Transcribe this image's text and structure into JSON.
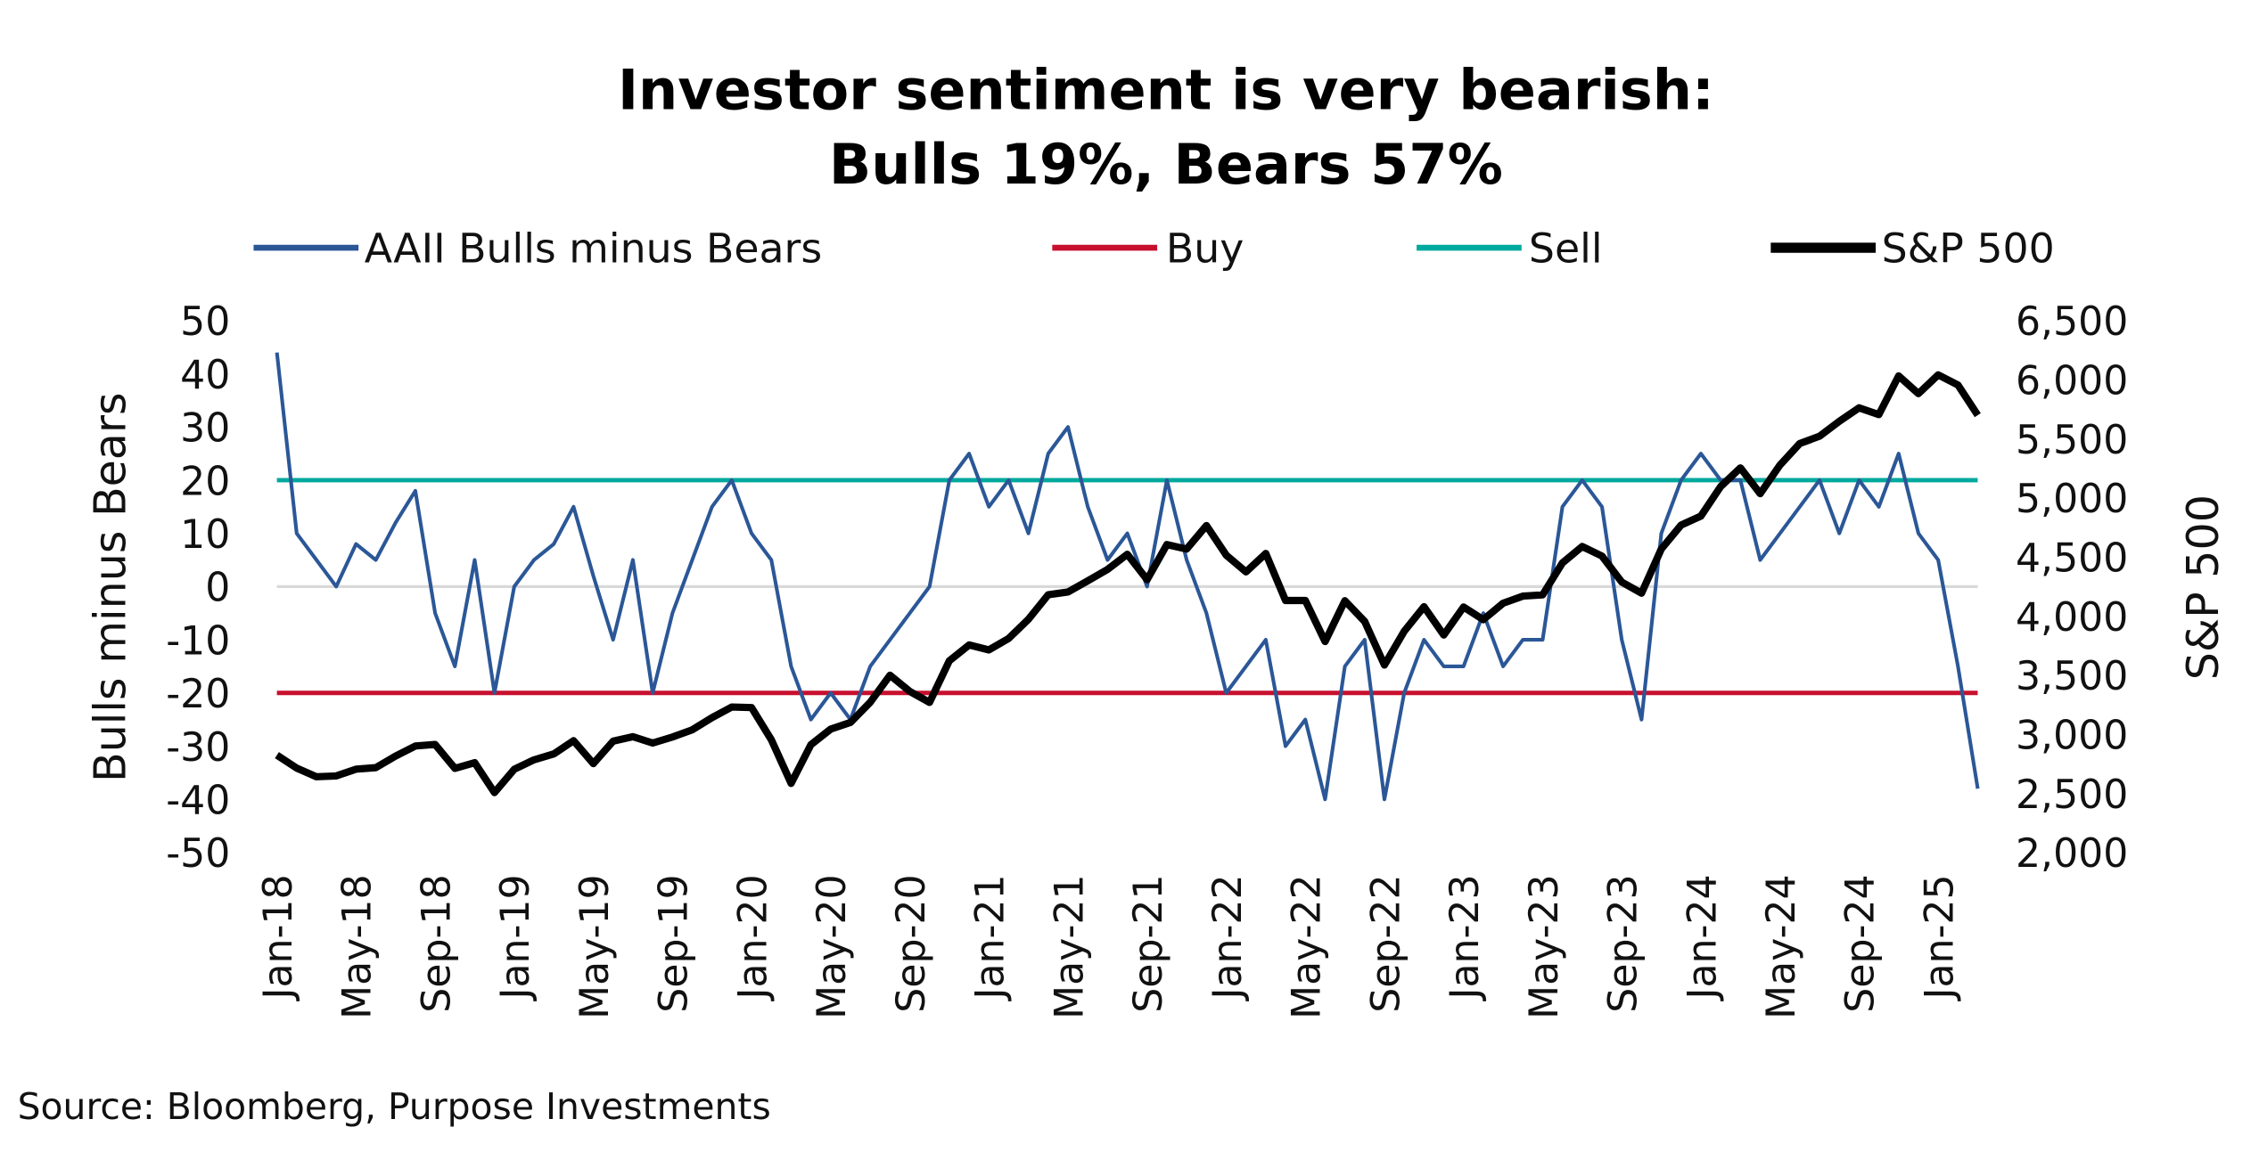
{
  "chart_data": {
    "type": "line",
    "title": "Investor sentiment is very bearish:",
    "subtitle": "Bulls 19%, Bears 57%",
    "ylabel": "Bulls minus Bears",
    "y2label": "S&P 500",
    "ylim": [
      -50,
      50
    ],
    "y2lim": [
      2000,
      6500
    ],
    "yticks": [
      "50",
      "40",
      "30",
      "20",
      "10",
      "0",
      "-10",
      "-20",
      "-30",
      "-40",
      "-50"
    ],
    "y2ticks": [
      "6,500",
      "6,000",
      "5,500",
      "5,000",
      "4,500",
      "4,000",
      "3,500",
      "3,000",
      "2,500",
      "2,000"
    ],
    "xticks": [
      "Jan-18",
      "May-18",
      "Sep-18",
      "Jan-19",
      "May-19",
      "Sep-19",
      "Jan-20",
      "May-20",
      "Sep-20",
      "Jan-21",
      "May-21",
      "Sep-21",
      "Jan-22",
      "May-22",
      "Sep-22",
      "Jan-23",
      "May-23",
      "Sep-23",
      "Jan-24",
      "May-24",
      "Sep-24",
      "Jan-25"
    ],
    "x_start": "2018-01",
    "x_frequency": "monthly",
    "legend_position": "top",
    "grid": false,
    "colors": {
      "bulls_minus_bears": "#2B5797",
      "buy": "#C8102E",
      "sell": "#00A99D",
      "sp500": "#000000",
      "zero_line": "#D9D9D9"
    },
    "reference_lines": [
      {
        "name": "Buy",
        "value": -20
      },
      {
        "name": "Sell",
        "value": 20
      }
    ],
    "series": [
      {
        "name": "AAII Bulls minus Bears",
        "axis": "left",
        "values": [
          44,
          10,
          5,
          0,
          8,
          5,
          12,
          18,
          -5,
          -15,
          5,
          -20,
          0,
          5,
          8,
          15,
          2,
          -10,
          5,
          -20,
          -5,
          5,
          15,
          20,
          10,
          5,
          -15,
          -25,
          -20,
          -25,
          -15,
          -10,
          -5,
          0,
          20,
          25,
          15,
          20,
          10,
          25,
          30,
          15,
          5,
          10,
          0,
          20,
          5,
          -5,
          -20,
          -15,
          -10,
          -30,
          -25,
          -40,
          -15,
          -10,
          -40,
          -20,
          -10,
          -15,
          -15,
          -5,
          -15,
          -10,
          -10,
          15,
          20,
          15,
          -10,
          -25,
          10,
          20,
          25,
          20,
          20,
          5,
          10,
          15,
          20,
          10,
          20,
          15,
          25,
          10,
          5,
          -15,
          -38
        ]
      },
      {
        "name": "S&P 500",
        "axis": "right",
        "values": [
          2824,
          2714,
          2641,
          2648,
          2705,
          2718,
          2816,
          2901,
          2914,
          2712,
          2760,
          2507,
          2704,
          2784,
          2834,
          2946,
          2752,
          2942,
          2980,
          2926,
          2977,
          3038,
          3141,
          3231,
          3226,
          2954,
          2585,
          2912,
          3044,
          3100,
          3271,
          3500,
          3363,
          3270,
          3622,
          3756,
          3714,
          3811,
          3973,
          4181,
          4204,
          4298,
          4395,
          4523,
          4308,
          4605,
          4567,
          4766,
          4516,
          4374,
          4530,
          4132,
          4132,
          3785,
          4130,
          3955,
          3586,
          3872,
          4080,
          3840,
          4077,
          3970,
          4109,
          4169,
          4180,
          4450,
          4589,
          4508,
          4288,
          4194,
          4568,
          4770,
          4846,
          5096,
          5254,
          5036,
          5278,
          5460,
          5522,
          5648,
          5762,
          5705,
          6032,
          5882,
          6041,
          5955,
          5700
        ]
      }
    ],
    "source": "Source: Bloomberg, Purpose Investments"
  }
}
